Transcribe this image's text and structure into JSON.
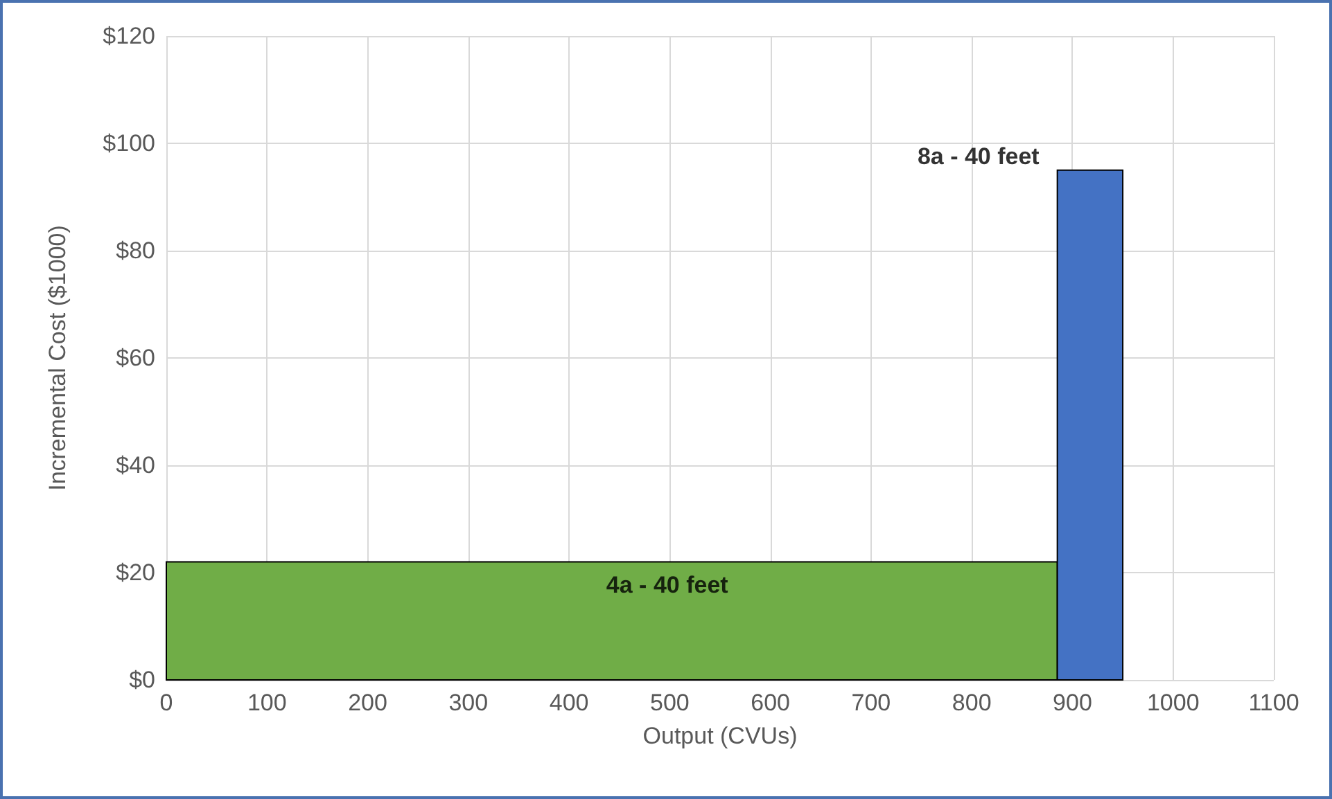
{
  "chart_data": {
    "type": "histogram",
    "xlabel": "Output (CVUs)",
    "ylabel": "Incremental Cost ($1000)",
    "bins": [
      0,
      885,
      950
    ],
    "values": [
      22,
      95
    ],
    "colors": [
      "#70ad47",
      "#4472c4"
    ],
    "xlim": [
      0,
      1100
    ],
    "xticks": [
      0,
      100,
      200,
      300,
      400,
      500,
      600,
      700,
      800,
      900,
      1000,
      1100
    ],
    "ylim": [
      0,
      120
    ],
    "yticks": [
      {
        "value": 0,
        "label": "$0"
      },
      {
        "value": 20,
        "label": "$20"
      },
      {
        "value": 40,
        "label": "$40"
      },
      {
        "value": 60,
        "label": "$60"
      },
      {
        "value": 80,
        "label": "$80"
      },
      {
        "value": 100,
        "label": "$100"
      },
      {
        "value": 120,
        "label": "$120"
      }
    ],
    "grid": true,
    "annotations": [
      "4a - 40 feet",
      "8a - 40 feet"
    ]
  }
}
